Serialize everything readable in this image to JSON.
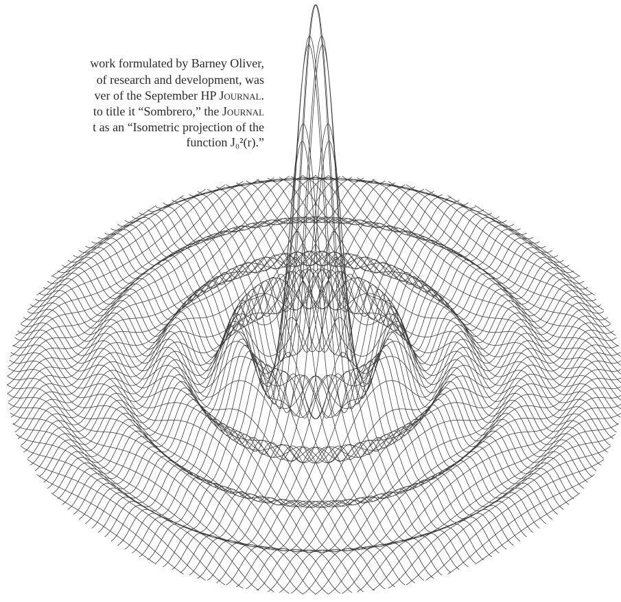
{
  "caption": {
    "lines": [
      [
        {
          "text": "work formulated by Barney Oliver,"
        }
      ],
      [
        {
          "text": "of research and development, was"
        }
      ],
      [
        {
          "text": "ver of the September HP "
        },
        {
          "text": "Journal",
          "small_caps": true
        },
        {
          "text": "."
        }
      ],
      [
        {
          "text": "to title it “Sombrero,” the "
        },
        {
          "text": "Journal",
          "small_caps": true
        }
      ],
      [
        {
          "text": "t as an “Isometric projection of the"
        }
      ],
      [
        {
          "text": "function J₀²(r).”"
        }
      ]
    ]
  }
}
